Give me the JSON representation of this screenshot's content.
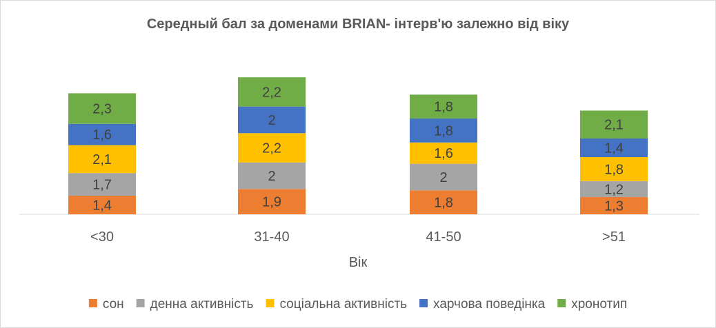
{
  "chart_data": {
    "type": "bar",
    "stacked": true,
    "title": "Середный бал за доменами BRIAN- інтерв'ю залежно від віку",
    "xlabel": "Вік",
    "ylabel": "",
    "categories": [
      "<30",
      "31-40",
      "41-50",
      ">51"
    ],
    "series": [
      {
        "name": "сон",
        "color": "#ED7D31",
        "values": [
          1.4,
          1.9,
          1.8,
          1.3
        ],
        "labels": [
          "1,4",
          "1,9",
          "1,8",
          "1,3"
        ]
      },
      {
        "name": "денна активність",
        "color": "#A5A5A5",
        "values": [
          1.7,
          2,
          2,
          1.2
        ],
        "labels": [
          "1,7",
          "2",
          "2",
          "1,2"
        ]
      },
      {
        "name": "соціальна активність",
        "color": "#FFC000",
        "values": [
          2.1,
          2.2,
          1.6,
          1.8
        ],
        "labels": [
          "2,1",
          "2,2",
          "1,6",
          "1,8"
        ]
      },
      {
        "name": "харчова поведінка",
        "color": "#4472C4",
        "values": [
          1.6,
          2,
          1.8,
          1.4
        ],
        "labels": [
          "1,6",
          "2",
          "1,8",
          "1,4"
        ]
      },
      {
        "name": "хронотип",
        "color": "#70AD47",
        "values": [
          2.3,
          2.2,
          1.8,
          2.1
        ],
        "labels": [
          "2,3",
          "2,2",
          "1,8",
          "2,1"
        ]
      }
    ],
    "ylim": [
      0,
      10
    ],
    "grid": false,
    "legend_position": "bottom"
  }
}
